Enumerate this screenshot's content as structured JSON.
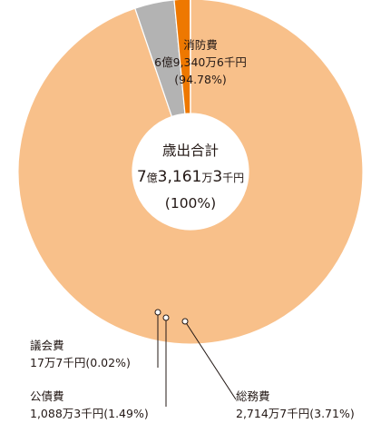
{
  "chart_data": {
    "type": "pie",
    "style": "donut",
    "center": {
      "title": "歳出合計",
      "total_prefix": "7",
      "total_unit_oku": "億",
      "total_mid": "3,161",
      "total_unit_man": "万",
      "total_mid2": "3",
      "total_unit_sen": "千円",
      "percent": "(100%)"
    },
    "slices": [
      {
        "name": "消防費",
        "amount_label": "6億9,340万6千円",
        "percent_label": "(94.78%)",
        "value": 94.78,
        "color": "#f8c08a"
      },
      {
        "name": "総務費",
        "amount_label": "2,714万7千円",
        "percent_label": "(3.71%)",
        "value": 3.71,
        "color": "#b3b3b3"
      },
      {
        "name": "公債費",
        "amount_label": "1,088万3千円",
        "percent_label": "(1.49%)",
        "value": 1.49,
        "color": "#ee7800"
      },
      {
        "name": "議会費",
        "amount_label": "17万7千円",
        "percent_label": "(0.02%)",
        "value": 0.02,
        "color": "#8a5a2b"
      }
    ]
  }
}
